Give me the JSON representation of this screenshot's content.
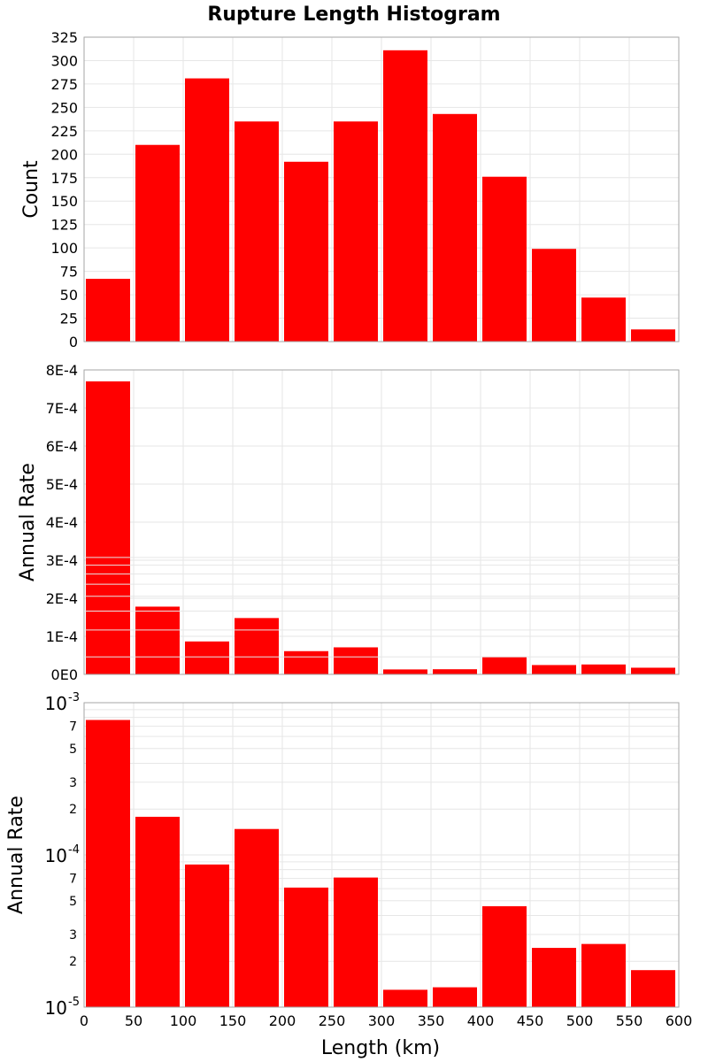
{
  "title": "Rupture Length Histogram",
  "xlabel": "Length (km)",
  "colors": {
    "bar": "#ff0000",
    "grid": "#e6e6e6",
    "frame": "#a6a6a6"
  },
  "chart_data": [
    {
      "type": "bar",
      "scale": "linear",
      "ylabel": "Count",
      "x_bin_starts": [
        0,
        50,
        100,
        150,
        200,
        250,
        300,
        350,
        400,
        450,
        500,
        550
      ],
      "bin_width": 50,
      "values": [
        67,
        210,
        281,
        235,
        192,
        235,
        311,
        243,
        176,
        99,
        47,
        13
      ],
      "xlim": [
        0,
        600
      ],
      "ylim": [
        0,
        325
      ],
      "yticks": [
        0,
        25,
        50,
        75,
        100,
        125,
        150,
        175,
        200,
        225,
        250,
        275,
        300,
        325
      ],
      "ytick_labels": [
        "0",
        "25",
        "50",
        "75",
        "100",
        "125",
        "150",
        "175",
        "200",
        "225",
        "250",
        "275",
        "300",
        "325"
      ],
      "grid": true
    },
    {
      "type": "bar",
      "scale": "linear",
      "ylabel": "Annual Rate",
      "x_bin_starts": [
        0,
        50,
        100,
        150,
        200,
        250,
        300,
        350,
        400,
        450,
        500,
        550
      ],
      "bin_width": 50,
      "values": [
        0.00077,
        0.000178,
        8.65e-05,
        0.000148,
        6.1e-05,
        7.1e-05,
        1.3e-05,
        1.35e-05,
        4.6e-05,
        2.45e-05,
        2.6e-05,
        1.75e-05
      ],
      "xlim": [
        0,
        600
      ],
      "ylim": [
        0,
        0.0008
      ],
      "yticks": [
        0,
        0.0001,
        0.0002,
        0.0003,
        0.0004,
        0.0005,
        0.0006,
        0.0007,
        0.0008
      ],
      "ytick_labels": [
        "0E0",
        "1E-4",
        "2E-4",
        "3E-4",
        "4E-4",
        "5E-4",
        "6E-4",
        "7E-4",
        "8E-4"
      ],
      "grid": true
    },
    {
      "type": "bar",
      "scale": "log",
      "ylabel": "Annual Rate",
      "x_bin_starts": [
        0,
        50,
        100,
        150,
        200,
        250,
        300,
        350,
        400,
        450,
        500,
        550
      ],
      "bin_width": 50,
      "values": [
        0.00077,
        0.000178,
        8.65e-05,
        0.000148,
        6.1e-05,
        7.1e-05,
        1.3e-05,
        1.35e-05,
        4.6e-05,
        2.45e-05,
        2.6e-05,
        1.75e-05
      ],
      "xlim": [
        0,
        600
      ],
      "ylim": [
        1e-05,
        0.001
      ],
      "major_ticks": [
        {
          "value": 0.001,
          "base": "10",
          "exp": "-3"
        },
        {
          "value": 0.0001,
          "base": "10",
          "exp": "-4"
        },
        {
          "value": 1e-05,
          "base": "10",
          "exp": "-5"
        }
      ],
      "minor_ticks": [
        {
          "value": 0.0007,
          "label": "7"
        },
        {
          "value": 0.0005,
          "label": "5"
        },
        {
          "value": 0.0003,
          "label": "3"
        },
        {
          "value": 0.0002,
          "label": "2"
        },
        {
          "value": 7e-05,
          "label": "7"
        },
        {
          "value": 5e-05,
          "label": "5"
        },
        {
          "value": 3e-05,
          "label": "3"
        },
        {
          "value": 2e-05,
          "label": "2"
        }
      ],
      "grid": true
    }
  ],
  "xticks": [
    0,
    50,
    100,
    150,
    200,
    250,
    300,
    350,
    400,
    450,
    500,
    550,
    600
  ],
  "xtick_labels": [
    "0",
    "50",
    "100",
    "150",
    "200",
    "250",
    "300",
    "350",
    "400",
    "450",
    "500",
    "550",
    "600"
  ]
}
